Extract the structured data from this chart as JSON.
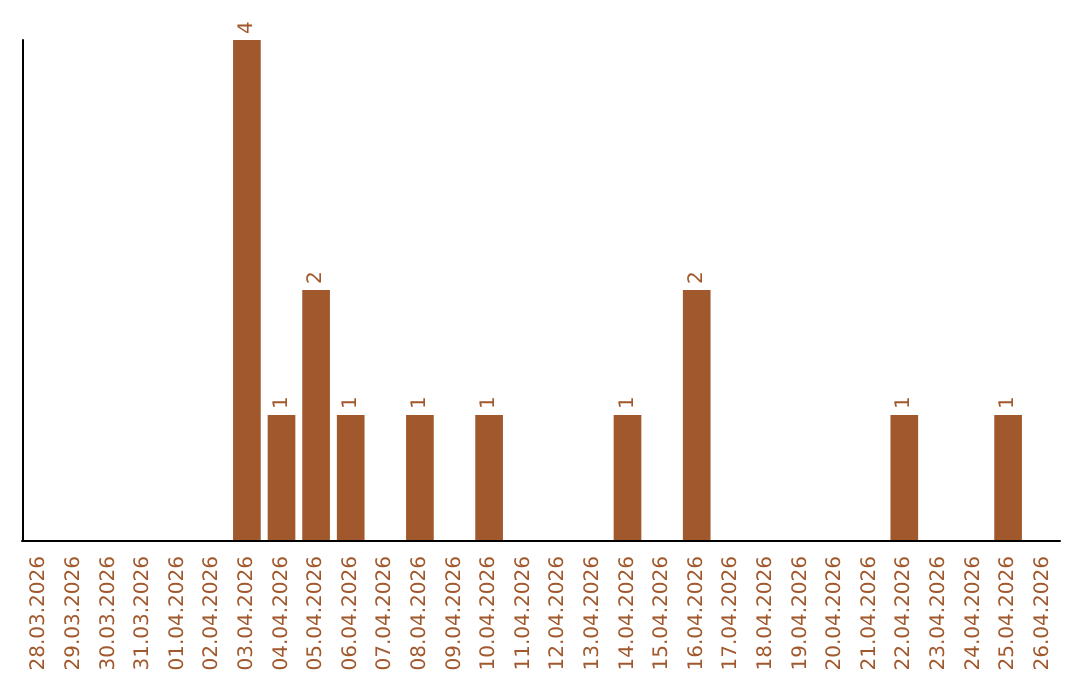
{
  "chart_data": {
    "type": "bar",
    "categories": [
      "28.03.2026",
      "29.03.2026",
      "30.03.2026",
      "31.03.2026",
      "01.04.2026",
      "02.04.2026",
      "03.04.2026",
      "04.04.2026",
      "05.04.2026",
      "06.04.2026",
      "07.04.2026",
      "08.04.2026",
      "09.04.2026",
      "10.04.2026",
      "11.04.2026",
      "12.04.2026",
      "13.04.2026",
      "14.04.2026",
      "15.04.2026",
      "16.04.2026",
      "17.04.2026",
      "18.04.2026",
      "19.04.2026",
      "20.04.2026",
      "21.04.2026",
      "22.04.2026",
      "23.04.2026",
      "24.04.2026",
      "25.04.2026",
      "26.04.2026"
    ],
    "values": [
      0,
      0,
      0,
      0,
      0,
      0,
      4,
      1,
      2,
      1,
      0,
      1,
      0,
      1,
      0,
      0,
      0,
      1,
      0,
      2,
      0,
      0,
      0,
      0,
      0,
      1,
      0,
      0,
      1,
      0
    ],
    "value_labels": [
      null,
      null,
      null,
      null,
      null,
      null,
      "4",
      "1",
      "2",
      "1",
      null,
      "1",
      null,
      "1",
      null,
      null,
      null,
      "1",
      null,
      "2",
      null,
      null,
      null,
      null,
      null,
      "1",
      null,
      null,
      "1",
      null
    ],
    "color": "#a0582c",
    "tick_labels": "x",
    "grid": false
  }
}
